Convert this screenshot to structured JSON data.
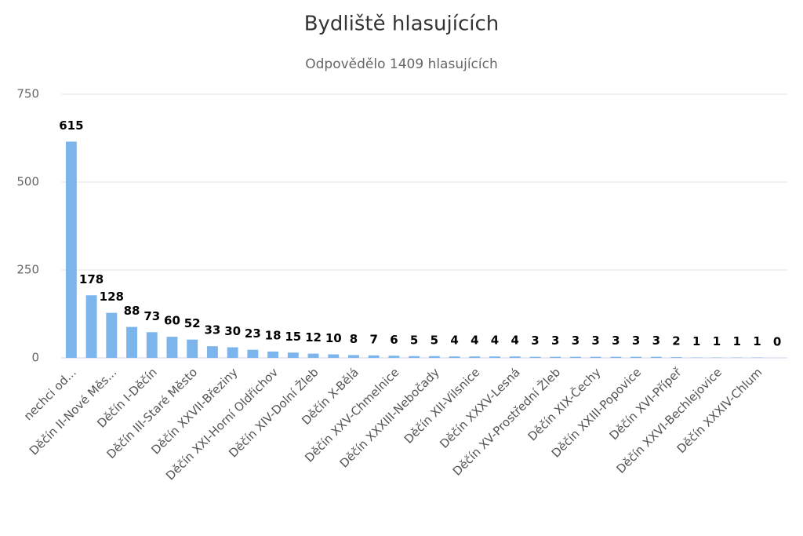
{
  "chart_data": {
    "type": "bar",
    "title": "Bydliště hlasujících",
    "subtitle": "Odpovědělo 1409 hlasujících",
    "categories": [
      "nechci od...",
      null,
      "Děčín II-Nové Měs...",
      null,
      "Děčín I-Děčín",
      null,
      "Děčín III-Staré Město",
      null,
      "Děčín XXVII-Březiny",
      null,
      "Děčín XXI-Horní Oldřichov",
      null,
      "Děčín XIV-Dolní Žleb",
      null,
      "Děčín X-Bělá",
      null,
      "Děčín XXV-Chmelnice",
      null,
      "Děčín XXXIII-Nebočady",
      null,
      "Děčín XII-Vilsnice",
      null,
      "Děčín XXXV-Lesná",
      null,
      "Děčín XV-Prostřední Žleb",
      null,
      "Děčín XIX-Čechy",
      null,
      "Děčín XXIII-Popovice",
      null,
      "Děčín XVI-Přípeř",
      null,
      "Děčín XXVI-Bechlejovice",
      null,
      "Děčín XXXIV-Chlum",
      null
    ],
    "values": [
      615,
      178,
      128,
      88,
      73,
      60,
      52,
      33,
      30,
      23,
      18,
      15,
      12,
      10,
      8,
      7,
      6,
      5,
      5,
      4,
      4,
      4,
      4,
      3,
      3,
      3,
      3,
      3,
      3,
      3,
      2,
      1,
      1,
      1,
      1,
      0
    ],
    "color": "#7cb5ec",
    "ylim": [
      0,
      750
    ],
    "yticks": [
      0,
      250,
      500,
      750
    ],
    "grid": true
  }
}
